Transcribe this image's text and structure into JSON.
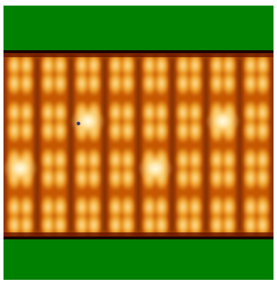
{
  "colors": {
    "background": "#ffffff",
    "band": "#008000",
    "edge": "#1a0000",
    "heat_dark": "#5a0c00",
    "heat_mid": "#c85a05",
    "heat_warm": "#eb9a1e",
    "heat_bright": "#fffcf0",
    "marker": "#2a3a8a"
  },
  "field": {
    "columns": 8,
    "rows": 4,
    "bright_tiles": [
      {
        "col": 2,
        "row": 1
      },
      {
        "col": 6,
        "row": 1
      },
      {
        "col": 0,
        "row": 2
      },
      {
        "col": 4,
        "row": 2
      }
    ],
    "marker": {
      "col": 2,
      "row": 1
    }
  },
  "icons": {
    "marker": "blue-dot-marker-icon"
  }
}
